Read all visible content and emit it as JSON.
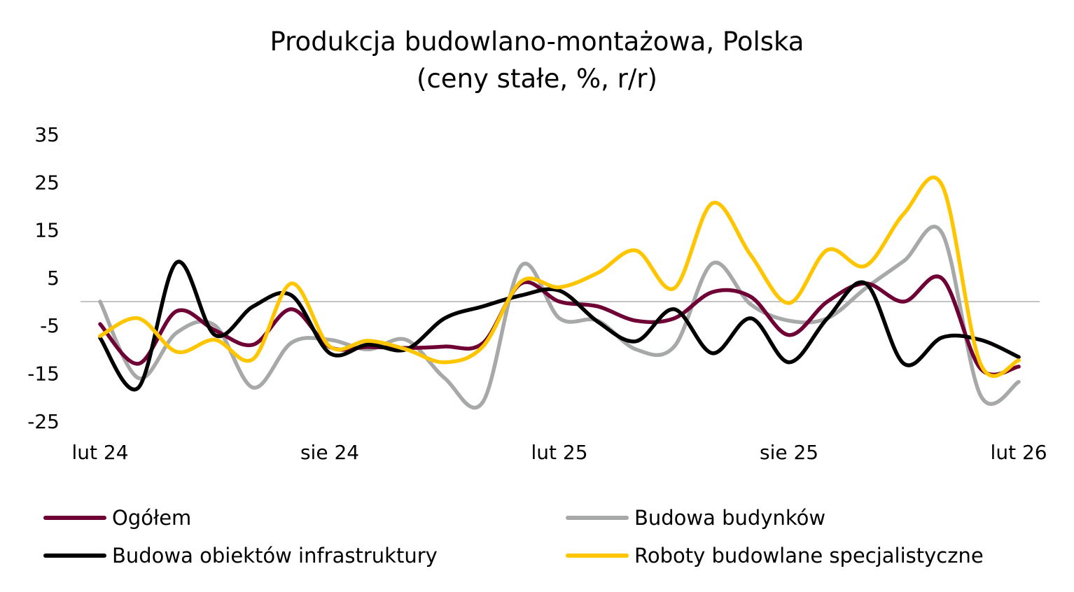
{
  "chart_data": {
    "type": "line",
    "title": "Produkcja budowlano-montażowa, Polska",
    "subtitle": "(ceny stałe, %, r/r)",
    "xlabel": "",
    "ylabel": "",
    "x_tick_labels": [
      "lut 24",
      "sie 24",
      "lut 25",
      "sie 25",
      "lut 26"
    ],
    "y_ticks": [
      35,
      25,
      15,
      5,
      -5,
      -15,
      -25
    ],
    "ylim": [
      -25,
      35
    ],
    "x": [
      "2024-02",
      "2024-03",
      "2024-04",
      "2024-05",
      "2024-06",
      "2024-07",
      "2024-08",
      "2024-09",
      "2024-10",
      "2024-11",
      "2024-12",
      "2025-01",
      "2025-02",
      "2025-03",
      "2025-04",
      "2025-05",
      "2025-06",
      "2025-07",
      "2025-08",
      "2025-09",
      "2025-10",
      "2025-11",
      "2025-12",
      "2026-01",
      "2026-02"
    ],
    "grid": false,
    "legend_position": "bottom",
    "series": [
      {
        "name": "Ogółem",
        "color": "#6e0035",
        "values": [
          -4.7,
          -13,
          -2,
          -6,
          -9,
          -1.6,
          -9.5,
          -9.5,
          -9.7,
          -9.4,
          -8.7,
          3.8,
          0,
          -1,
          -4,
          -3.5,
          2,
          1,
          -7,
          0,
          3.8,
          0,
          4.8,
          -14,
          -13.6
        ]
      },
      {
        "name": "Budowa budynków",
        "color": "#a7a9a8",
        "values": [
          0,
          -16,
          -6.5,
          -5,
          -18,
          -8.6,
          -8,
          -10,
          -8,
          -16,
          -21,
          7.5,
          -3.5,
          -4,
          -10,
          -9.4,
          8,
          -0.6,
          -4,
          -3.5,
          2.8,
          8.5,
          14.3,
          -19.6,
          -16.8
        ]
      },
      {
        "name": "Budowa obiektów infrastruktury",
        "color": "#000000",
        "values": [
          -7.6,
          -18,
          8.2,
          -7,
          -1,
          1.3,
          -10.8,
          -9,
          -10,
          -3.5,
          -1,
          1.3,
          2.3,
          -4.2,
          -8.3,
          -1.6,
          -10.8,
          -3.5,
          -12.7,
          -3.5,
          3.8,
          -13,
          -7.5,
          -8,
          -11.6
        ]
      },
      {
        "name": "Roboty budowlane specjalistyczne",
        "color": "#ffc600",
        "values": [
          -7.2,
          -3.5,
          -10.5,
          -8,
          -12,
          3.8,
          -9.4,
          -8.2,
          -10,
          -12.7,
          -9.4,
          4.2,
          3,
          6,
          10.7,
          2.8,
          20.6,
          9.7,
          -0.3,
          10.8,
          7.5,
          18.4,
          24.3,
          -13,
          -12.3
        ]
      }
    ]
  }
}
